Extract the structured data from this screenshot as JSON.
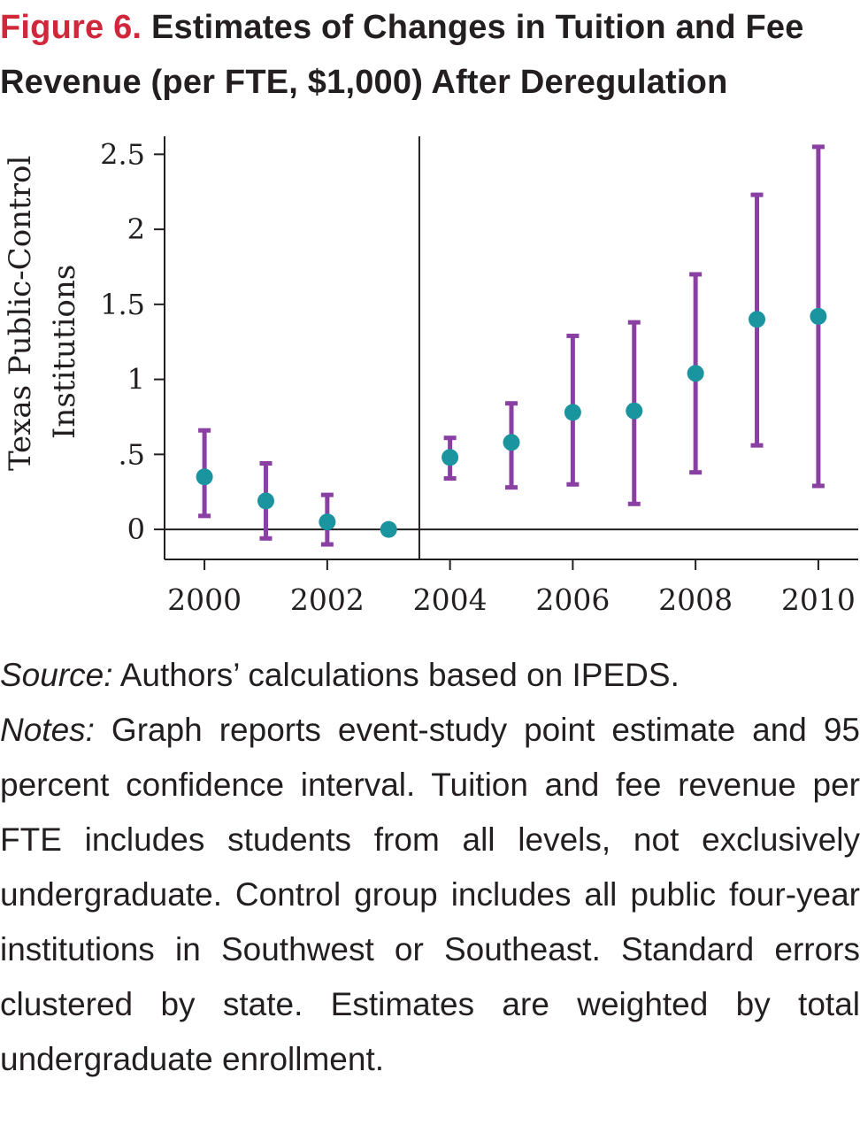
{
  "title": {
    "figure_label": "Figure 6.",
    "text": "Estimates of Changes in Tuition and Fee Revenue (per FTE, $1,000) After Deregulation"
  },
  "chart_data": {
    "type": "scatter",
    "ylabel_line1": "Texas Public-Control",
    "ylabel_line2": "Institutions",
    "xlabel": "",
    "x_ticks": [
      "2000",
      "2002",
      "2004",
      "2006",
      "2008",
      "2010"
    ],
    "y_ticks": [
      "0",
      ".5",
      "1",
      "1.5",
      "2",
      "2.5"
    ],
    "y_tick_values": [
      0,
      0.5,
      1,
      1.5,
      2,
      2.5
    ],
    "x_tick_values": [
      2000,
      2002,
      2004,
      2006,
      2008,
      2010
    ],
    "xlim": [
      1999.35,
      2010.65
    ],
    "ylim": [
      -0.2,
      2.62
    ],
    "vertical_reference_x": 2003.5,
    "horizontal_reference_y": 0,
    "point_color": "#1a949f",
    "errorbar_color": "#8a3fa3",
    "points": [
      {
        "year": 2000,
        "estimate": 0.35,
        "ci_low": 0.09,
        "ci_high": 0.66
      },
      {
        "year": 2001,
        "estimate": 0.19,
        "ci_low": -0.06,
        "ci_high": 0.44
      },
      {
        "year": 2002,
        "estimate": 0.05,
        "ci_low": -0.1,
        "ci_high": 0.23
      },
      {
        "year": 2003,
        "estimate": 0.0
      },
      {
        "year": 2004,
        "estimate": 0.48,
        "ci_low": 0.34,
        "ci_high": 0.61
      },
      {
        "year": 2005,
        "estimate": 0.58,
        "ci_low": 0.28,
        "ci_high": 0.84
      },
      {
        "year": 2006,
        "estimate": 0.78,
        "ci_low": 0.3,
        "ci_high": 1.29
      },
      {
        "year": 2007,
        "estimate": 0.79,
        "ci_low": 0.17,
        "ci_high": 1.38
      },
      {
        "year": 2008,
        "estimate": 1.04,
        "ci_low": 0.38,
        "ci_high": 1.7
      },
      {
        "year": 2009,
        "estimate": 1.4,
        "ci_low": 0.56,
        "ci_high": 2.23
      },
      {
        "year": 2010,
        "estimate": 1.42,
        "ci_low": 0.29,
        "ci_high": 2.55
      }
    ]
  },
  "caption": {
    "source_label": "Source:",
    "source_text": " Authors’ calculations based on IPEDS.",
    "notes_label": "Notes:",
    "notes_text": " Graph reports event-study point estimate and 95 percent confidence interval. Tuition and fee revenue per FTE includes students from all levels, not exclusively undergraduate. Control group includes all public four-year institutions in Southwest or Southeast. Standard errors clustered by state. Estimates are weighted by total undergraduate enrollment."
  }
}
